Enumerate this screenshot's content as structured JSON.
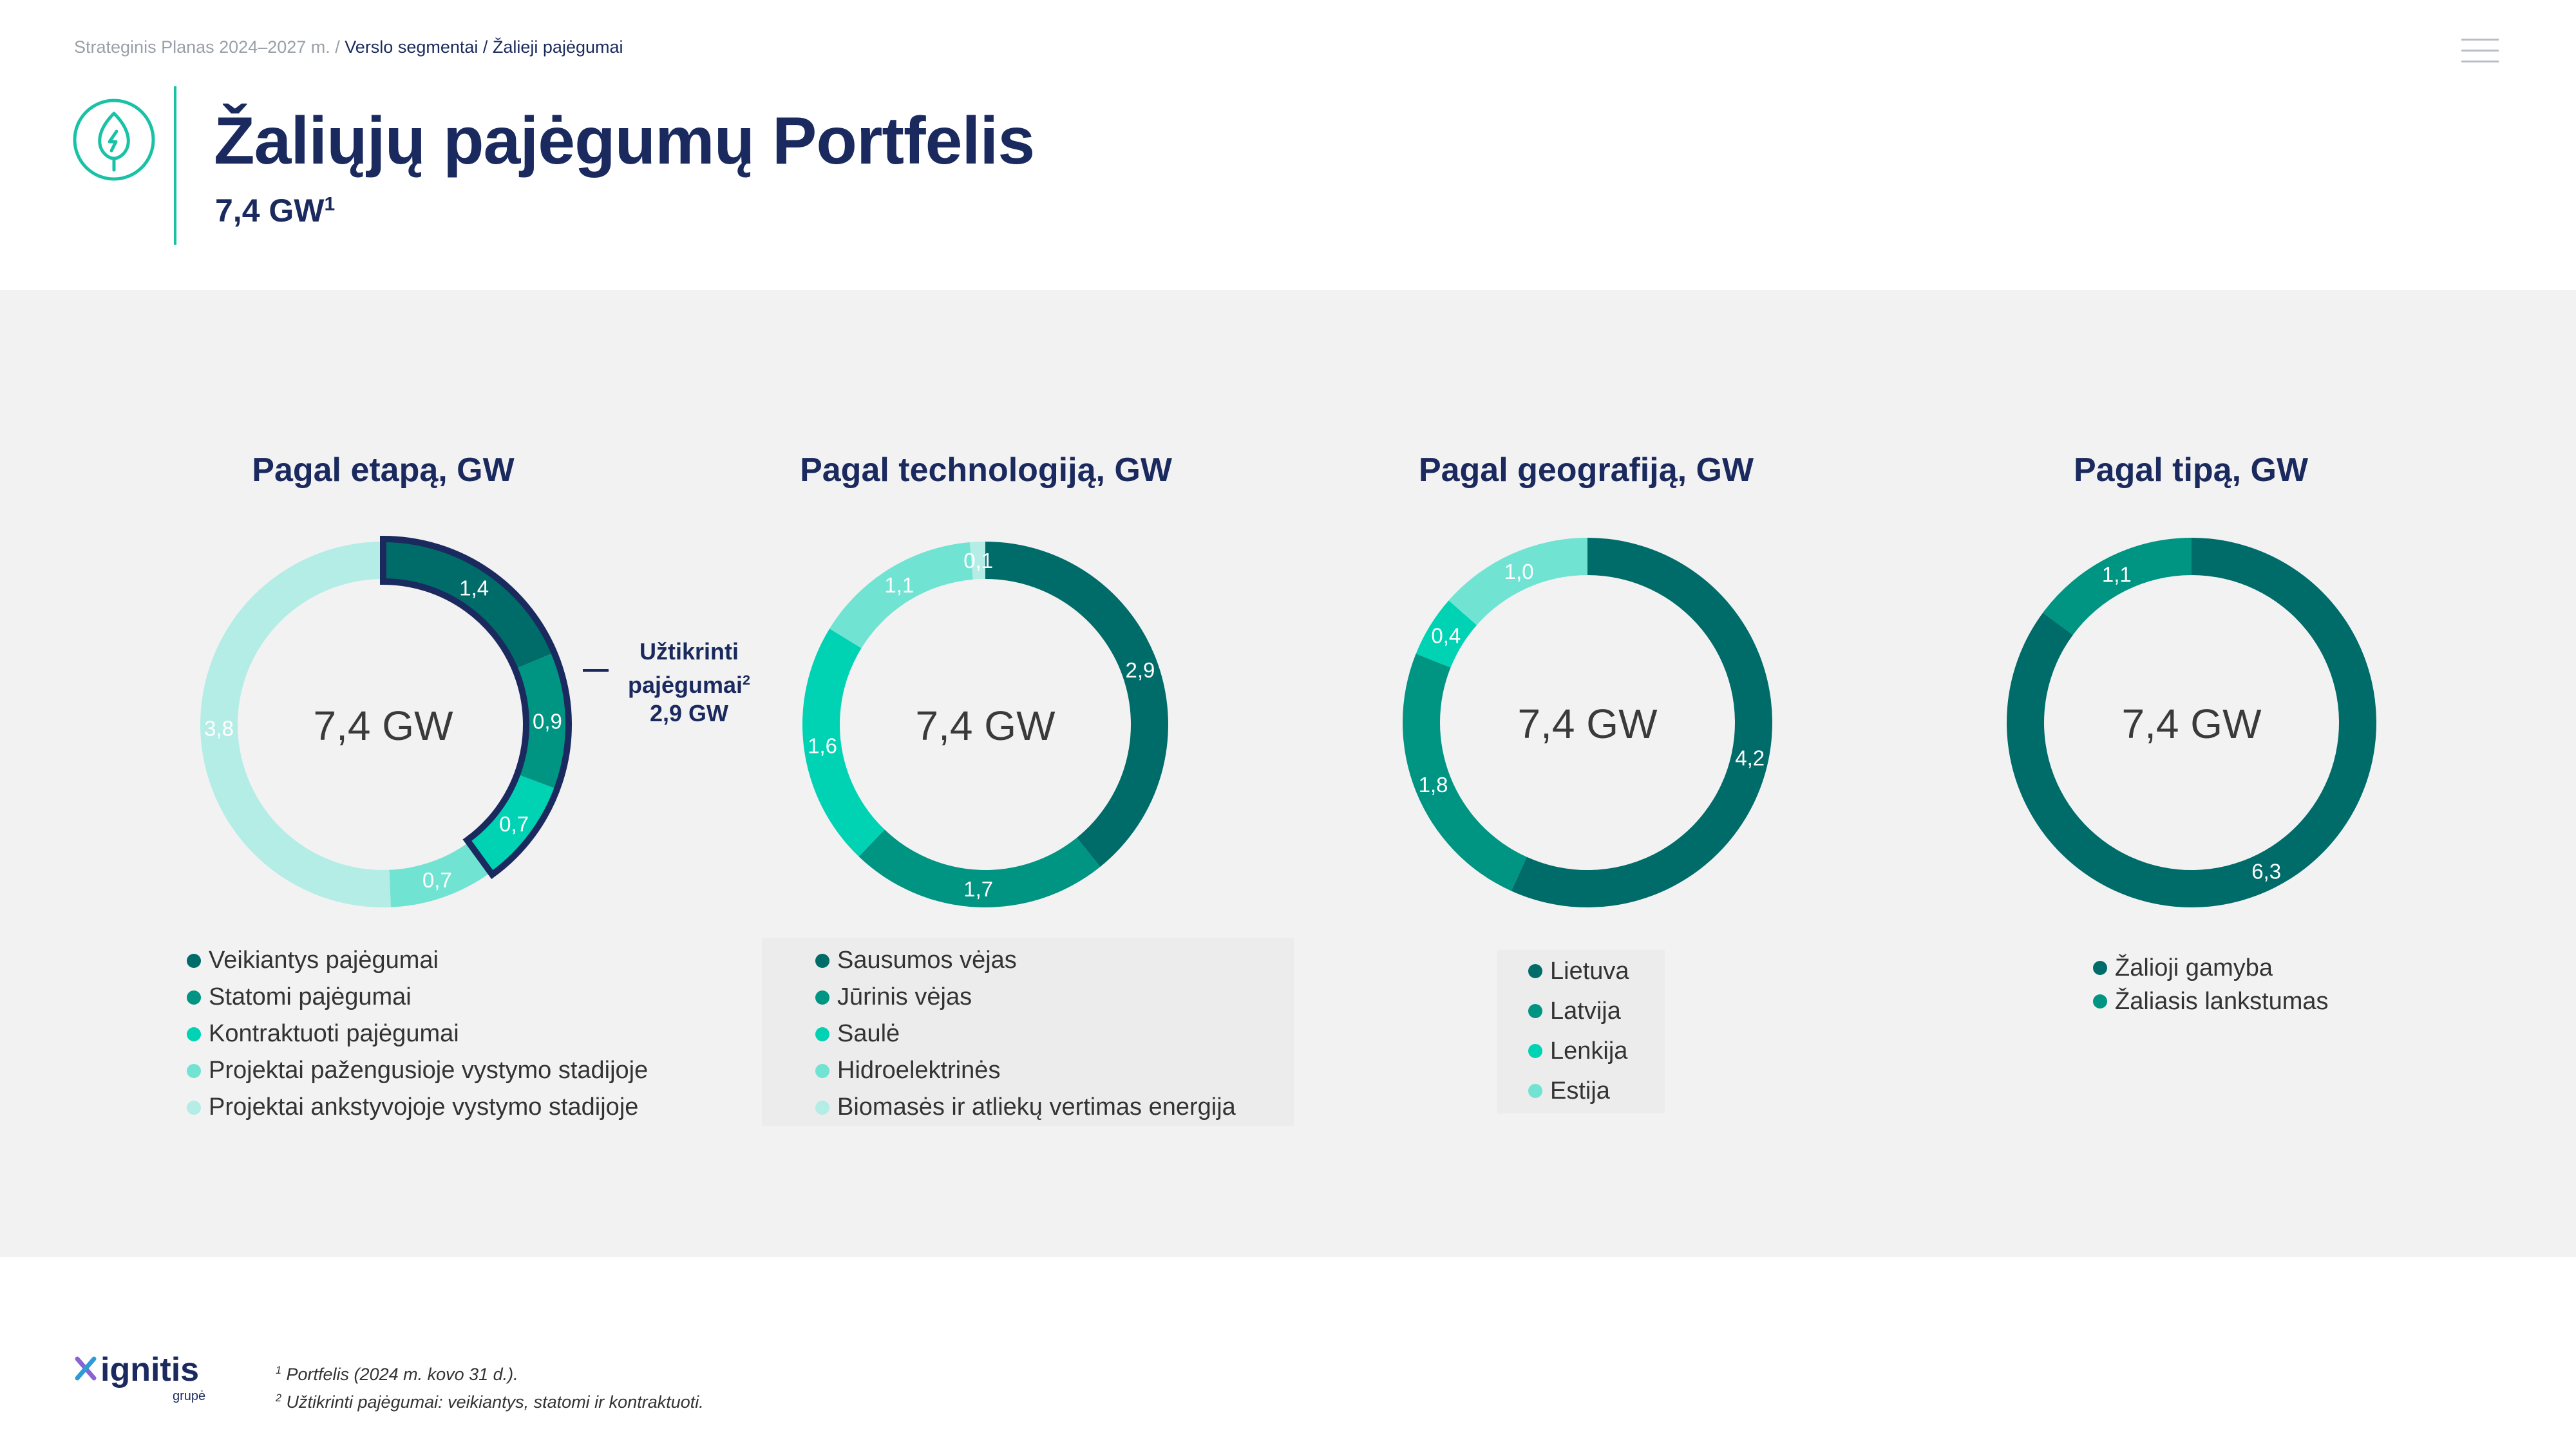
{
  "header": {
    "breadcrumb_root": "Strateginis Planas 2024–2027 m. /",
    "breadcrumb_current": "Verslo segmentai / Žalieji pajėgumai",
    "title": "Žaliųjų pajėgumų Portfelis",
    "subtitle_value": "7,4 GW",
    "subtitle_sup": "1"
  },
  "colors": {
    "dark_teal": "#006c6a",
    "teal": "#009482",
    "bright_teal": "#00d3b4",
    "light_teal": "#71e3d2",
    "pale_teal": "#b3ede6",
    "navy": "#1b2a5e",
    "panel": "#f2f2f2"
  },
  "chart_data": [
    {
      "type": "donut",
      "title": "Pagal etapą, GW",
      "center_label": "7,4 GW",
      "categories": [
        "Veikiantys pajėgumai",
        "Statomi pajėgumai",
        "Kontraktuoti pajėgumai",
        "Projektai pažengusioje vystymo stadijoje",
        "Projektai ankstyvojoje vystymo stadijoje"
      ],
      "values": [
        1.4,
        0.9,
        0.7,
        0.7,
        3.8
      ],
      "labels": [
        "1,4",
        "0,9",
        "0,7",
        "0,7",
        "3,8"
      ],
      "colors": [
        "#006c6a",
        "#009482",
        "#00d3b4",
        "#71e3d2",
        "#b3ede6"
      ],
      "annotation": {
        "text_line1": "Užtikrinti",
        "text_line2": "pajėgumai",
        "sup": "2",
        "value": "2,9 GW"
      }
    },
    {
      "type": "donut",
      "title": "Pagal technologiją, GW",
      "center_label": "7,4 GW",
      "categories": [
        "Sausumos vėjas",
        "Jūrinis vėjas",
        "Saulė",
        "Hidroelektrinės",
        "Biomasės ir atliekų vertimas energija"
      ],
      "values": [
        2.9,
        1.7,
        1.6,
        1.1,
        0.1
      ],
      "labels": [
        "2,9",
        "1,7",
        "1,6",
        "1,1",
        "0,1"
      ],
      "colors": [
        "#006c6a",
        "#009482",
        "#00d3b4",
        "#71e3d2",
        "#b3ede6"
      ]
    },
    {
      "type": "donut",
      "title": "Pagal geografiją, GW",
      "center_label": "7,4 GW",
      "categories": [
        "Lietuva",
        "Latvija",
        "Lenkija",
        "Estija"
      ],
      "values": [
        4.2,
        1.8,
        0.4,
        1.0
      ],
      "labels": [
        "4,2",
        "1,8",
        "0,4",
        "1,0"
      ],
      "colors": [
        "#006c6a",
        "#009482",
        "#00d3b4",
        "#71e3d2"
      ]
    },
    {
      "type": "donut",
      "title": "Pagal tipą, GW",
      "center_label": "7,4 GW",
      "categories": [
        "Žalioji gamyba",
        "Žaliasis lankstumas"
      ],
      "values": [
        6.3,
        1.1
      ],
      "labels": [
        "6,3",
        "1,1"
      ],
      "colors": [
        "#006c6a",
        "#009482"
      ]
    }
  ],
  "footer": {
    "logo_text": "ignitis",
    "logo_sub": "grupė",
    "note1_sup": "1",
    "note1": " Portfelis (2024 m. kovo 31 d.).",
    "note2_sup": "2",
    "note2": " Užtikrinti pajėgumai: veikiantys, statomi ir kontraktuoti."
  }
}
